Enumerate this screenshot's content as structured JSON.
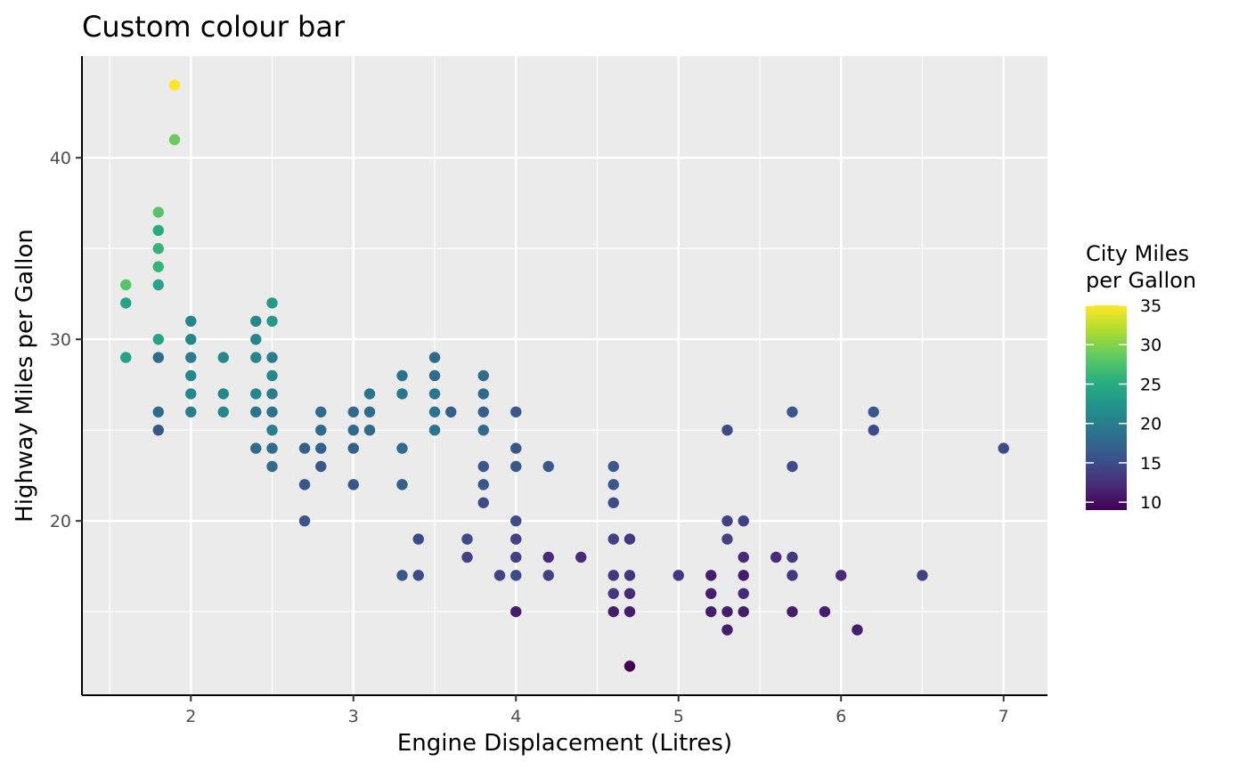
{
  "chart_data": {
    "type": "scatter",
    "title": "Custom colour bar",
    "xlabel": "Engine Displacement (Litres)",
    "ylabel": "Highway Miles per Gallon",
    "xlim": [
      1.33,
      7.27
    ],
    "ylim": [
      10.4,
      45.6
    ],
    "x_major_ticks": [
      2,
      3,
      4,
      5,
      6,
      7
    ],
    "x_minor_ticks": [
      1.5,
      2.5,
      3.5,
      4.5,
      5.5,
      6.5
    ],
    "y_major_ticks": [
      20,
      30,
      40
    ],
    "y_minor_ticks": [
      15,
      25,
      35
    ],
    "grid": true,
    "panel_background": "#ebebeb",
    "grid_color": "#ffffff",
    "legend": {
      "title": "City Miles\nper Gallon",
      "placement": "right",
      "range": [
        9,
        35
      ],
      "breaks": [
        10,
        15,
        20,
        25,
        30,
        35
      ],
      "palette": [
        "#440154",
        "#472d7b",
        "#3b528b",
        "#2c728e",
        "#21918c",
        "#28ae80",
        "#5ec962",
        "#addc30",
        "#fde725"
      ]
    },
    "points": [
      {
        "x": 1.6,
        "y": 33,
        "cty": 28
      },
      {
        "x": 1.6,
        "y": 32,
        "cty": 24
      },
      {
        "x": 1.6,
        "y": 29,
        "cty": 24
      },
      {
        "x": 1.8,
        "y": 37,
        "cty": 28
      },
      {
        "x": 1.8,
        "y": 36,
        "cty": 25
      },
      {
        "x": 1.8,
        "y": 35,
        "cty": 26
      },
      {
        "x": 1.8,
        "y": 34,
        "cty": 26
      },
      {
        "x": 1.8,
        "y": 33,
        "cty": 24
      },
      {
        "x": 1.8,
        "y": 30,
        "cty": 24
      },
      {
        "x": 1.8,
        "y": 29,
        "cty": 18
      },
      {
        "x": 1.8,
        "y": 26,
        "cty": 18
      },
      {
        "x": 1.8,
        "y": 25,
        "cty": 16
      },
      {
        "x": 1.9,
        "y": 44,
        "cty": 35
      },
      {
        "x": 1.9,
        "y": 41,
        "cty": 29
      },
      {
        "x": 2.0,
        "y": 31,
        "cty": 21
      },
      {
        "x": 2.0,
        "y": 30,
        "cty": 21
      },
      {
        "x": 2.0,
        "y": 29,
        "cty": 20
      },
      {
        "x": 2.0,
        "y": 28,
        "cty": 21
      },
      {
        "x": 2.0,
        "y": 27,
        "cty": 21
      },
      {
        "x": 2.0,
        "y": 26,
        "cty": 20
      },
      {
        "x": 2.2,
        "y": 29,
        "cty": 21
      },
      {
        "x": 2.2,
        "y": 27,
        "cty": 21
      },
      {
        "x": 2.2,
        "y": 26,
        "cty": 21
      },
      {
        "x": 2.4,
        "y": 31,
        "cty": 21
      },
      {
        "x": 2.4,
        "y": 30,
        "cty": 21
      },
      {
        "x": 2.4,
        "y": 29,
        "cty": 21
      },
      {
        "x": 2.4,
        "y": 27,
        "cty": 21
      },
      {
        "x": 2.4,
        "y": 26,
        "cty": 19
      },
      {
        "x": 2.4,
        "y": 24,
        "cty": 18
      },
      {
        "x": 2.5,
        "y": 32,
        "cty": 23
      },
      {
        "x": 2.5,
        "y": 31,
        "cty": 23
      },
      {
        "x": 2.5,
        "y": 29,
        "cty": 20
      },
      {
        "x": 2.5,
        "y": 28,
        "cty": 21
      },
      {
        "x": 2.5,
        "y": 27,
        "cty": 20
      },
      {
        "x": 2.5,
        "y": 26,
        "cty": 19
      },
      {
        "x": 2.5,
        "y": 25,
        "cty": 20
      },
      {
        "x": 2.5,
        "y": 24,
        "cty": 18
      },
      {
        "x": 2.5,
        "y": 23,
        "cty": 18
      },
      {
        "x": 2.7,
        "y": 24,
        "cty": 17
      },
      {
        "x": 2.7,
        "y": 22,
        "cty": 16
      },
      {
        "x": 2.7,
        "y": 20,
        "cty": 16
      },
      {
        "x": 2.8,
        "y": 26,
        "cty": 18
      },
      {
        "x": 2.8,
        "y": 25,
        "cty": 18
      },
      {
        "x": 2.8,
        "y": 24,
        "cty": 17
      },
      {
        "x": 2.8,
        "y": 23,
        "cty": 16
      },
      {
        "x": 3.0,
        "y": 26,
        "cty": 18
      },
      {
        "x": 3.0,
        "y": 25,
        "cty": 18
      },
      {
        "x": 3.0,
        "y": 24,
        "cty": 17
      },
      {
        "x": 3.0,
        "y": 22,
        "cty": 16
      },
      {
        "x": 3.1,
        "y": 27,
        "cty": 19
      },
      {
        "x": 3.1,
        "y": 26,
        "cty": 18
      },
      {
        "x": 3.1,
        "y": 25,
        "cty": 18
      },
      {
        "x": 3.3,
        "y": 28,
        "cty": 19
      },
      {
        "x": 3.3,
        "y": 27,
        "cty": 19
      },
      {
        "x": 3.3,
        "y": 24,
        "cty": 18
      },
      {
        "x": 3.3,
        "y": 22,
        "cty": 17
      },
      {
        "x": 3.3,
        "y": 17,
        "cty": 16
      },
      {
        "x": 3.4,
        "y": 19,
        "cty": 15
      },
      {
        "x": 3.4,
        "y": 17,
        "cty": 15
      },
      {
        "x": 3.5,
        "y": 29,
        "cty": 18
      },
      {
        "x": 3.5,
        "y": 28,
        "cty": 18
      },
      {
        "x": 3.5,
        "y": 27,
        "cty": 19
      },
      {
        "x": 3.5,
        "y": 26,
        "cty": 19
      },
      {
        "x": 3.5,
        "y": 25,
        "cty": 19
      },
      {
        "x": 3.6,
        "y": 26,
        "cty": 17
      },
      {
        "x": 3.7,
        "y": 19,
        "cty": 15
      },
      {
        "x": 3.7,
        "y": 18,
        "cty": 14
      },
      {
        "x": 3.8,
        "y": 28,
        "cty": 18
      },
      {
        "x": 3.8,
        "y": 27,
        "cty": 18
      },
      {
        "x": 3.8,
        "y": 26,
        "cty": 17
      },
      {
        "x": 3.8,
        "y": 25,
        "cty": 18
      },
      {
        "x": 3.8,
        "y": 23,
        "cty": 16
      },
      {
        "x": 3.8,
        "y": 22,
        "cty": 16
      },
      {
        "x": 3.8,
        "y": 21,
        "cty": 15
      },
      {
        "x": 3.9,
        "y": 17,
        "cty": 14
      },
      {
        "x": 4.0,
        "y": 26,
        "cty": 16
      },
      {
        "x": 4.0,
        "y": 24,
        "cty": 16
      },
      {
        "x": 4.0,
        "y": 23,
        "cty": 16
      },
      {
        "x": 4.0,
        "y": 20,
        "cty": 15
      },
      {
        "x": 4.0,
        "y": 19,
        "cty": 14
      },
      {
        "x": 4.0,
        "y": 18,
        "cty": 14
      },
      {
        "x": 4.0,
        "y": 17,
        "cty": 15
      },
      {
        "x": 4.0,
        "y": 15,
        "cty": 11
      },
      {
        "x": 4.2,
        "y": 23,
        "cty": 16
      },
      {
        "x": 4.2,
        "y": 18,
        "cty": 12
      },
      {
        "x": 4.2,
        "y": 17,
        "cty": 14
      },
      {
        "x": 4.4,
        "y": 18,
        "cty": 12
      },
      {
        "x": 4.6,
        "y": 23,
        "cty": 16
      },
      {
        "x": 4.6,
        "y": 22,
        "cty": 16
      },
      {
        "x": 4.6,
        "y": 21,
        "cty": 15
      },
      {
        "x": 4.6,
        "y": 19,
        "cty": 14
      },
      {
        "x": 4.6,
        "y": 17,
        "cty": 13
      },
      {
        "x": 4.6,
        "y": 16,
        "cty": 13
      },
      {
        "x": 4.6,
        "y": 15,
        "cty": 11
      },
      {
        "x": 4.7,
        "y": 19,
        "cty": 13
      },
      {
        "x": 4.7,
        "y": 17,
        "cty": 13
      },
      {
        "x": 4.7,
        "y": 16,
        "cty": 12
      },
      {
        "x": 4.7,
        "y": 15,
        "cty": 11
      },
      {
        "x": 4.7,
        "y": 12,
        "cty": 9
      },
      {
        "x": 5.0,
        "y": 17,
        "cty": 13
      },
      {
        "x": 5.2,
        "y": 17,
        "cty": 11
      },
      {
        "x": 5.2,
        "y": 16,
        "cty": 11
      },
      {
        "x": 5.2,
        "y": 15,
        "cty": 11
      },
      {
        "x": 5.3,
        "y": 25,
        "cty": 15
      },
      {
        "x": 5.3,
        "y": 20,
        "cty": 14
      },
      {
        "x": 5.3,
        "y": 19,
        "cty": 14
      },
      {
        "x": 5.3,
        "y": 15,
        "cty": 11
      },
      {
        "x": 5.3,
        "y": 14,
        "cty": 11
      },
      {
        "x": 5.4,
        "y": 20,
        "cty": 14
      },
      {
        "x": 5.4,
        "y": 18,
        "cty": 12
      },
      {
        "x": 5.4,
        "y": 17,
        "cty": 11
      },
      {
        "x": 5.4,
        "y": 16,
        "cty": 12
      },
      {
        "x": 5.4,
        "y": 15,
        "cty": 11
      },
      {
        "x": 5.6,
        "y": 18,
        "cty": 12
      },
      {
        "x": 5.7,
        "y": 26,
        "cty": 16
      },
      {
        "x": 5.7,
        "y": 23,
        "cty": 15
      },
      {
        "x": 5.7,
        "y": 18,
        "cty": 13
      },
      {
        "x": 5.7,
        "y": 17,
        "cty": 13
      },
      {
        "x": 5.7,
        "y": 15,
        "cty": 11
      },
      {
        "x": 5.9,
        "y": 15,
        "cty": 11
      },
      {
        "x": 6.0,
        "y": 17,
        "cty": 12
      },
      {
        "x": 6.1,
        "y": 14,
        "cty": 11
      },
      {
        "x": 6.2,
        "y": 26,
        "cty": 16
      },
      {
        "x": 6.2,
        "y": 25,
        "cty": 15
      },
      {
        "x": 6.5,
        "y": 17,
        "cty": 14
      },
      {
        "x": 7.0,
        "y": 24,
        "cty": 15
      }
    ]
  }
}
